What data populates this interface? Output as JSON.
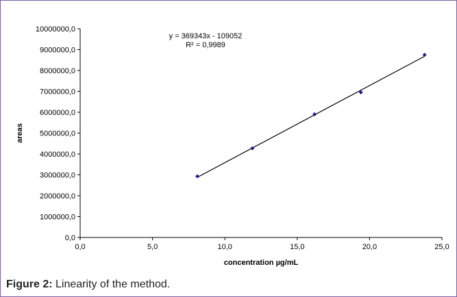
{
  "chart_data": {
    "type": "scatter",
    "xlabel": "concentration µg/mL",
    "ylabel": "areas",
    "xlim": [
      0,
      25
    ],
    "ylim": [
      0,
      10000000
    ],
    "x_ticks": [
      "0,0",
      "5,0",
      "10,0",
      "15,0",
      "20,0",
      "25,0"
    ],
    "y_ticks": [
      "0,0",
      "1000000,0",
      "2000000,0",
      "3000000,0",
      "4000000,0",
      "5000000,0",
      "6000000,0",
      "7000000,0",
      "8000000,0",
      "9000000,0",
      "10000000,0"
    ],
    "grid": false,
    "legend": "none",
    "points": [
      {
        "x": 8.1,
        "y": 2930000
      },
      {
        "x": 11.9,
        "y": 4270000
      },
      {
        "x": 16.2,
        "y": 5900000
      },
      {
        "x": 19.4,
        "y": 6950000
      },
      {
        "x": 23.8,
        "y": 8750000
      }
    ],
    "trendline": {
      "slope": 369343,
      "intercept": -109052,
      "x_range": [
        8.1,
        23.8
      ],
      "equation": "y = 369343x - 109052",
      "r_squared": "R² = 0,9989"
    },
    "colors": {
      "points": "#1a1a8a",
      "line": "#000000",
      "frame": "#7b5fa3"
    }
  },
  "caption": {
    "label": "Figure 2:",
    "text": " Linearity of the method."
  }
}
